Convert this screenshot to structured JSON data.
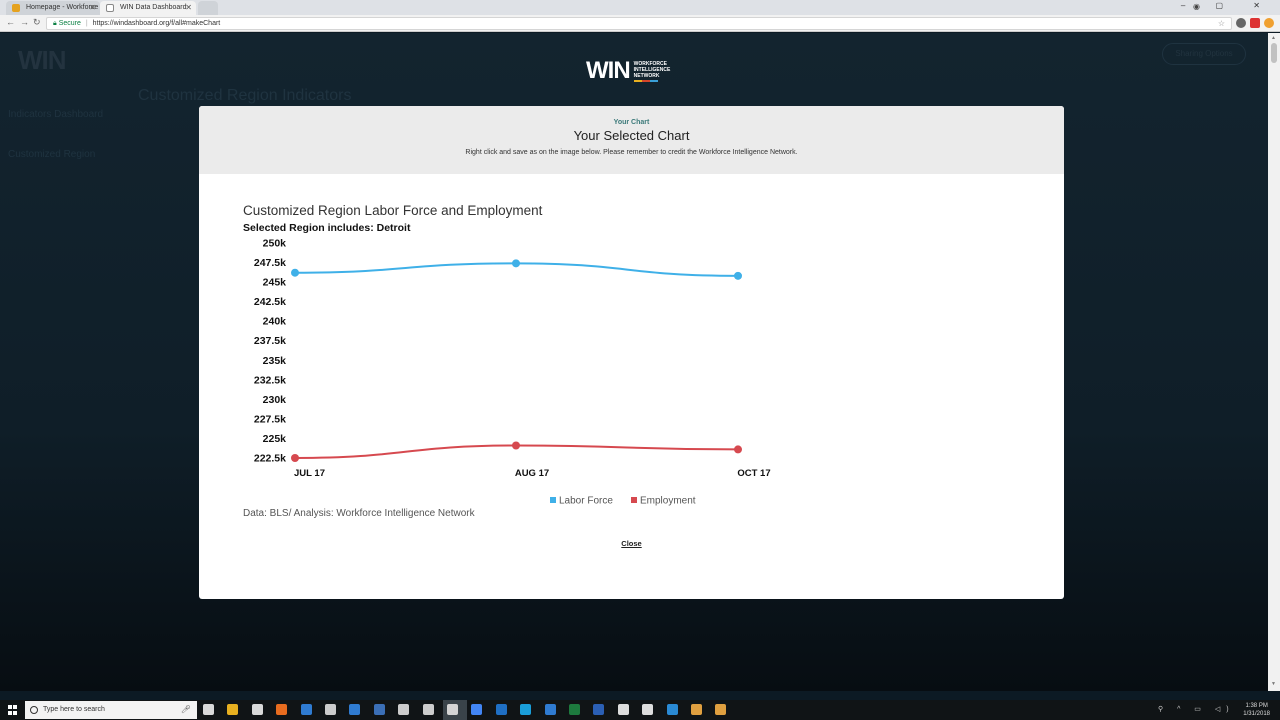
{
  "browser": {
    "tabs": [
      {
        "title": "Homepage - Workforce",
        "favicon_color": "#e5a21f"
      },
      {
        "title": "WIN Data Dashboard",
        "favicon_color": "#888888"
      }
    ],
    "address": {
      "secure_label": "Secure",
      "url": "https://windashboard.org/f/all#makeChart"
    },
    "window_controls": "– ▢ ✕"
  },
  "page": {
    "bg_logo": "WIN",
    "bg_title": "Customized Region Indicators",
    "bg_sidebar": [
      "Indicators Dashboard",
      "Customized Region"
    ],
    "bg_button": "Sharing Options",
    "logo": {
      "wordmark": "WIN",
      "tagline_1": "WORKFORCE",
      "tagline_2": "INTELLIGENCE",
      "tagline_3": "NETWORK",
      "bar_colors": [
        "#e8b020",
        "#d4452a",
        "#3aa0d8"
      ]
    }
  },
  "modal": {
    "kicker": "Your Chart",
    "title": "Your Selected Chart",
    "note": "Right click and save as on the image below. Please remember to credit the Workforce Intelligence Network.",
    "chart_title": "Customized Region Labor Force and Employment",
    "chart_subtitle": "Selected Region includes: Detroit",
    "credit": "Data: BLS/ Analysis: Workforce Intelligence Network",
    "close_label": "Close"
  },
  "chart_data": {
    "type": "line",
    "title": "Customized Region Labor Force and Employment",
    "subtitle": "Selected Region includes: Detroit",
    "x": [
      "JUL 17",
      "AUG 17",
      "OCT 17"
    ],
    "y_ticks": [
      "250k",
      "247.5k",
      "245k",
      "242.5k",
      "240k",
      "237.5k",
      "235k",
      "232.5k",
      "230k",
      "227.5k",
      "225k",
      "222.5k"
    ],
    "ylim": [
      222500,
      250000
    ],
    "grid": false,
    "legend_position": "bottom",
    "series": [
      {
        "name": "Labor Force",
        "color": "#3fb0e8",
        "values": [
          246200,
          247400,
          245800
        ]
      },
      {
        "name": "Employment",
        "color": "#d6494f",
        "values": [
          222500,
          224100,
          223600
        ]
      }
    ]
  },
  "taskbar": {
    "search_placeholder": "Type here to search",
    "time": "1:38 PM",
    "date": "1/31/2018",
    "icon_colors": [
      "#d9d9d9",
      "#e8b020",
      "#d9d9d9",
      "#e86c1f",
      "#2f7bd1",
      "#cccccc",
      "#2f7bd1",
      "#3b6fb6",
      "#cccccc",
      "#cccccc",
      "#d4d4d4",
      "#4285f4",
      "#1f6fc4",
      "#1a9ed9",
      "#2f7bd1",
      "#1d7a3e",
      "#2b5fb4",
      "#dddddd",
      "#dddddd",
      "#2a8ad4",
      "#e0a040",
      "#e0a040"
    ]
  }
}
